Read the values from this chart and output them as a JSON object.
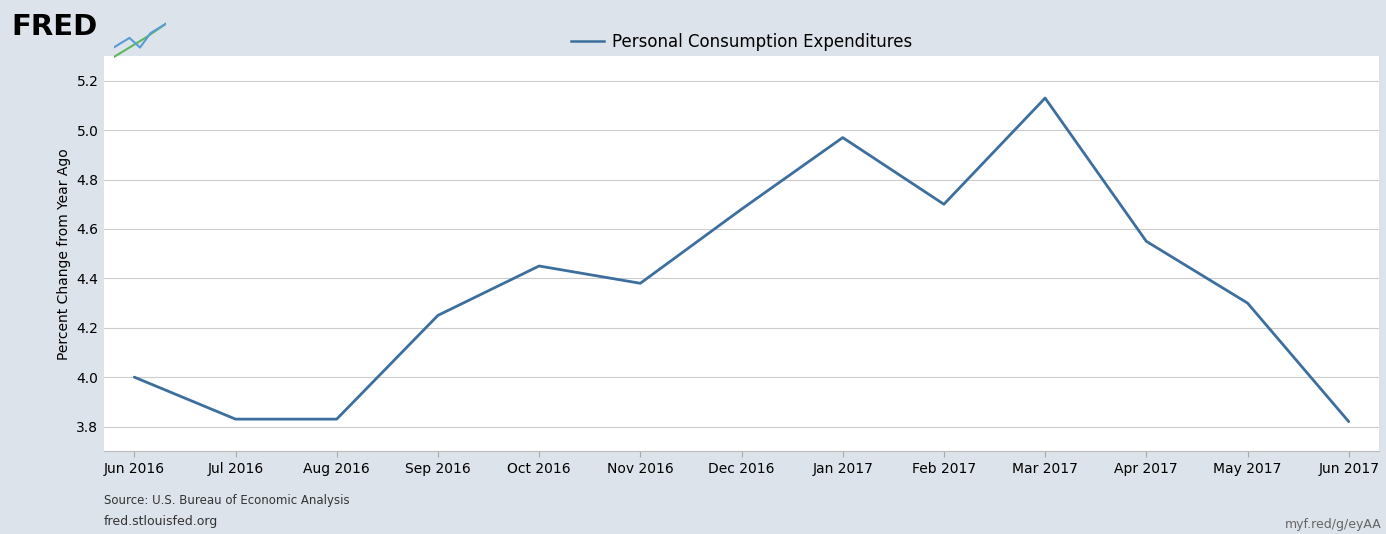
{
  "title": "Personal Consumption Expenditures",
  "ylabel": "Percent Change from Year Ago",
  "source_text": "Source: U.S. Bureau of Economic Analysis",
  "fred_url": "fred.stlouisfed.org",
  "myf_url": "myf.red/g/eyAA",
  "line_color": "#3D6F9E",
  "line_width": 2.0,
  "background_outer": "#dce3ea",
  "background_inner": "#ffffff",
  "grid_color": "#cccccc",
  "x_labels": [
    "Jun 2016",
    "Jul 2016",
    "Aug 2016",
    "Sep 2016",
    "Oct 2016",
    "Nov 2016",
    "Dec 2016",
    "Jan 2017",
    "Feb 2017",
    "Mar 2017",
    "Apr 2017",
    "May 2017",
    "Jun 2017"
  ],
  "x_values": [
    0,
    1,
    2,
    3,
    4,
    5,
    6,
    7,
    8,
    9,
    10,
    11,
    12
  ],
  "y_values": [
    4.0,
    3.83,
    3.83,
    4.25,
    4.45,
    4.38,
    4.68,
    4.97,
    4.7,
    5.13,
    4.55,
    4.3,
    3.82
  ],
  "ylim": [
    3.7,
    5.3
  ],
  "yticks": [
    3.8,
    4.0,
    4.2,
    4.4,
    4.6,
    4.8,
    5.0,
    5.2
  ],
  "title_fontsize": 12,
  "tick_fontsize": 10,
  "label_fontsize": 10,
  "legend_fontsize": 12
}
